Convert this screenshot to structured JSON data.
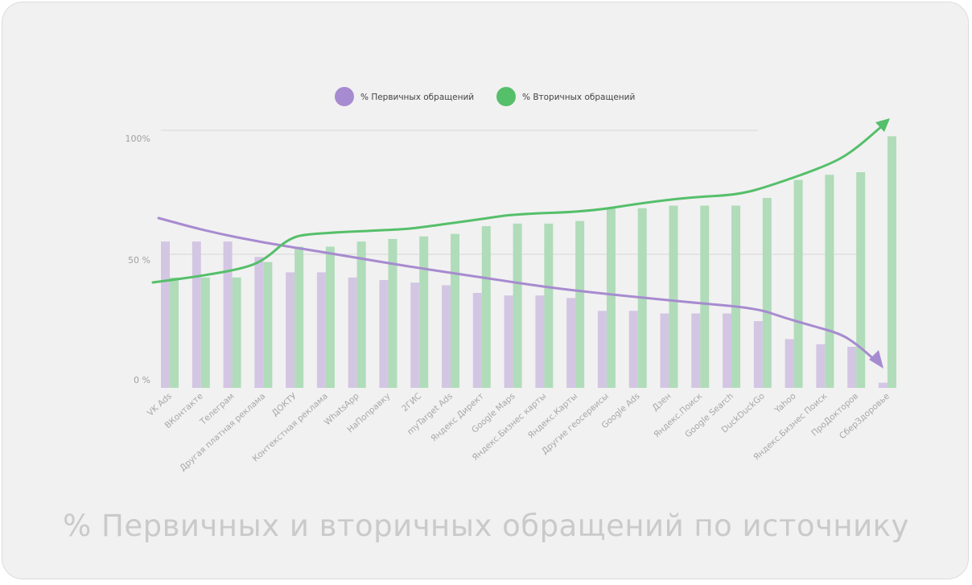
{
  "chart_data": {
    "type": "bar",
    "title": "% Первичных и вторичных обращений по источнику",
    "categories": [
      "VK Ads",
      "ВКонтакте",
      "Телеграм",
      "Другая платная реклама",
      "ДОКТУ",
      "Контекстная реклама",
      "WhatsApp",
      "НаПоправку",
      "2ГИС",
      "myTarget Ads",
      "Яндекс Директ",
      "Google Maps",
      "Яндекс.Бизнес карты",
      "Яндекс.Карты",
      "Другие геосервисы",
      "Google Ads",
      "Дзен",
      "Яндекс.Поиск",
      "Google Search",
      "DuckDuckGo",
      "Yahoo",
      "Яндекс.Бизнес Поиск",
      "ПроДокторов",
      "СберЗдоровье"
    ],
    "series": [
      {
        "name": "% Первичных обращений",
        "color": "#a78bd0",
        "bar_color": "#d3c6e3",
        "values": [
          57,
          57,
          57,
          51,
          45,
          45,
          43,
          42,
          41,
          40,
          37,
          36,
          36,
          35,
          30,
          30,
          29,
          29,
          29,
          26,
          19,
          17,
          16,
          2
        ]
      },
      {
        "name": "% Вторичных обращений",
        "color": "#55bf6a",
        "bar_color": "#b0dcb9",
        "values": [
          43,
          43,
          43,
          49,
          55,
          55,
          57,
          58,
          59,
          60,
          63,
          64,
          64,
          65,
          70,
          70,
          71,
          71,
          71,
          74,
          81,
          83,
          84,
          98
        ]
      }
    ],
    "yticks": [
      "0 %",
      "50 %",
      "100%"
    ],
    "ylim": [
      0,
      100
    ],
    "legend_position": "top-center",
    "trend_arrows": {
      "primary": "decreasing",
      "secondary": "increasing"
    }
  }
}
